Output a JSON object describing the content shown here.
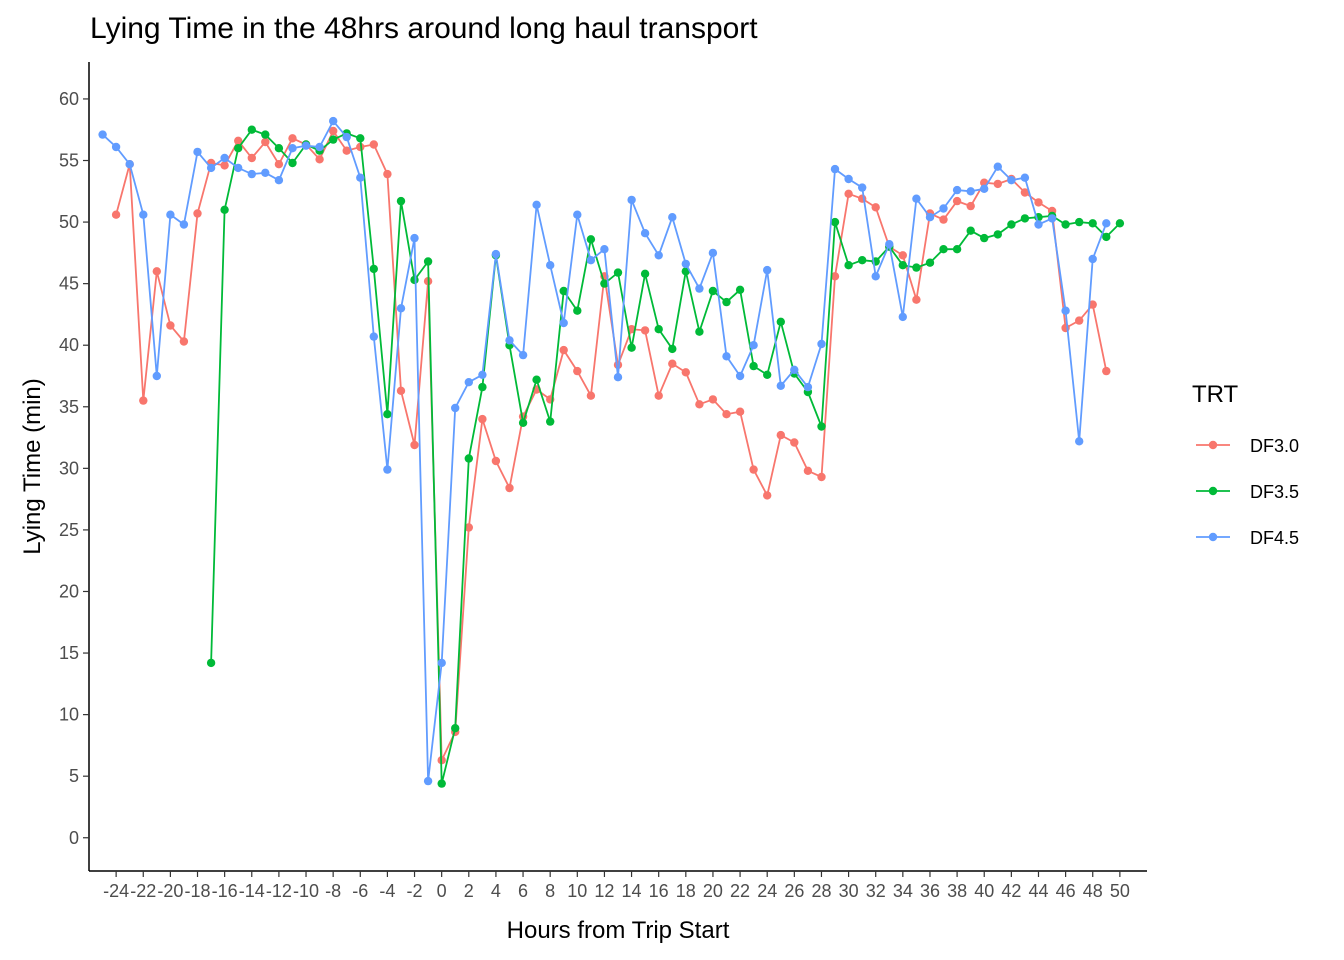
{
  "chart_data": {
    "type": "line",
    "title": "Lying Time in the 48hrs around long haul transport",
    "xlabel": "Hours from Trip Start",
    "ylabel": "Lying Time (min)",
    "xlim": [
      -26,
      52
    ],
    "ylim": [
      -2.7,
      63
    ],
    "x_ticks": [
      -24,
      -22,
      -20,
      -18,
      -16,
      -14,
      -12,
      -10,
      -8,
      -6,
      -4,
      -2,
      0,
      2,
      4,
      6,
      8,
      10,
      12,
      14,
      16,
      18,
      20,
      22,
      24,
      26,
      28,
      30,
      32,
      34,
      36,
      38,
      40,
      42,
      44,
      46,
      48,
      50
    ],
    "y_ticks": [
      0,
      5,
      10,
      15,
      20,
      25,
      30,
      35,
      40,
      45,
      50,
      55,
      60
    ],
    "grid": false,
    "legend": {
      "title": "TRT",
      "position": "right"
    },
    "series": [
      {
        "name": "DF3.0",
        "color": "#F8766D",
        "points": [
          [
            -24,
            50.6
          ],
          [
            -23,
            54.7
          ],
          [
            -22,
            35.5
          ],
          [
            -21,
            46.0
          ],
          [
            -20,
            41.6
          ],
          [
            -19,
            40.3
          ],
          [
            -18,
            50.7
          ],
          [
            -17,
            54.8
          ],
          [
            -16,
            54.6
          ],
          [
            -15,
            56.6
          ],
          [
            -14,
            55.2
          ],
          [
            -13,
            56.5
          ],
          [
            -12,
            54.7
          ],
          [
            -11,
            56.8
          ],
          [
            -10,
            56.3
          ],
          [
            -9,
            55.1
          ],
          [
            -8,
            57.4
          ],
          [
            -7,
            55.8
          ],
          [
            -6,
            56.1
          ],
          [
            -5,
            56.3
          ],
          [
            -4,
            53.9
          ],
          [
            -3,
            36.3
          ],
          [
            -2,
            31.9
          ],
          [
            -1,
            45.2
          ],
          [
            0,
            6.3
          ],
          [
            1,
            8.6
          ],
          [
            2,
            25.2
          ],
          [
            3,
            34.0
          ],
          [
            4,
            30.6
          ],
          [
            5,
            28.4
          ],
          [
            6,
            34.2
          ],
          [
            7,
            36.4
          ],
          [
            8,
            35.6
          ],
          [
            9,
            39.6
          ],
          [
            10,
            37.9
          ],
          [
            11,
            35.9
          ],
          [
            12,
            45.6
          ],
          [
            13,
            38.4
          ],
          [
            14,
            41.3
          ],
          [
            15,
            41.2
          ],
          [
            16,
            35.9
          ],
          [
            17,
            38.5
          ],
          [
            18,
            37.8
          ],
          [
            19,
            35.2
          ],
          [
            20,
            35.6
          ],
          [
            21,
            34.4
          ],
          [
            22,
            34.6
          ],
          [
            23,
            29.9
          ],
          [
            24,
            27.8
          ],
          [
            25,
            32.7
          ],
          [
            26,
            32.1
          ],
          [
            27,
            29.8
          ],
          [
            28,
            29.3
          ],
          [
            29,
            45.6
          ],
          [
            30,
            52.3
          ],
          [
            31,
            51.9
          ],
          [
            32,
            51.2
          ],
          [
            33,
            48.0
          ],
          [
            34,
            47.3
          ],
          [
            35,
            43.7
          ],
          [
            36,
            50.7
          ],
          [
            37,
            50.2
          ],
          [
            38,
            51.7
          ],
          [
            39,
            51.3
          ],
          [
            40,
            53.2
          ],
          [
            41,
            53.1
          ],
          [
            42,
            53.5
          ],
          [
            43,
            52.4
          ],
          [
            44,
            51.6
          ],
          [
            45,
            50.9
          ],
          [
            46,
            41.4
          ],
          [
            47,
            42.0
          ],
          [
            48,
            43.3
          ],
          [
            49,
            37.9
          ]
        ]
      },
      {
        "name": "DF3.5",
        "color": "#00BA38",
        "points": [
          [
            -17,
            14.2
          ],
          [
            -16,
            51.0
          ],
          [
            -15,
            56.0
          ],
          [
            -14,
            57.5
          ],
          [
            -13,
            57.1
          ],
          [
            -12,
            56.0
          ],
          [
            -11,
            54.8
          ],
          [
            -10,
            56.3
          ],
          [
            -9,
            55.8
          ],
          [
            -8,
            56.7
          ],
          [
            -7,
            57.2
          ],
          [
            -6,
            56.8
          ],
          [
            -5,
            46.2
          ],
          [
            -4,
            34.4
          ],
          [
            -3,
            51.7
          ],
          [
            -2,
            45.3
          ],
          [
            -1,
            46.8
          ],
          [
            0,
            4.4
          ],
          [
            1,
            8.9
          ],
          [
            2,
            30.8
          ],
          [
            3,
            36.6
          ],
          [
            4,
            47.3
          ],
          [
            5,
            40.0
          ],
          [
            6,
            33.7
          ],
          [
            7,
            37.2
          ],
          [
            8,
            33.8
          ],
          [
            9,
            44.4
          ],
          [
            10,
            42.8
          ],
          [
            11,
            48.6
          ],
          [
            12,
            45.0
          ],
          [
            13,
            45.9
          ],
          [
            14,
            39.8
          ],
          [
            15,
            45.8
          ],
          [
            16,
            41.3
          ],
          [
            17,
            39.7
          ],
          [
            18,
            46.0
          ],
          [
            19,
            41.1
          ],
          [
            20,
            44.4
          ],
          [
            21,
            43.5
          ],
          [
            22,
            44.5
          ],
          [
            23,
            38.3
          ],
          [
            24,
            37.6
          ],
          [
            25,
            41.9
          ],
          [
            26,
            37.7
          ],
          [
            27,
            36.2
          ],
          [
            28,
            33.4
          ],
          [
            29,
            50.0
          ],
          [
            30,
            46.5
          ],
          [
            31,
            46.9
          ],
          [
            32,
            46.8
          ],
          [
            33,
            48.0
          ],
          [
            34,
            46.5
          ],
          [
            35,
            46.3
          ],
          [
            36,
            46.7
          ],
          [
            37,
            47.8
          ],
          [
            38,
            47.8
          ],
          [
            39,
            49.3
          ],
          [
            40,
            48.7
          ],
          [
            41,
            49.0
          ],
          [
            42,
            49.8
          ],
          [
            43,
            50.3
          ],
          [
            44,
            50.4
          ],
          [
            45,
            50.5
          ],
          [
            46,
            49.8
          ],
          [
            47,
            50.0
          ],
          [
            48,
            49.9
          ],
          [
            49,
            48.8
          ],
          [
            50,
            49.9
          ]
        ]
      },
      {
        "name": "DF4.5",
        "color": "#619CFF",
        "points": [
          [
            -25,
            57.1
          ],
          [
            -24,
            56.1
          ],
          [
            -23,
            54.7
          ],
          [
            -22,
            50.6
          ],
          [
            -21,
            37.5
          ],
          [
            -20,
            50.6
          ],
          [
            -19,
            49.8
          ],
          [
            -18,
            55.7
          ],
          [
            -17,
            54.4
          ],
          [
            -16,
            55.2
          ],
          [
            -15,
            54.4
          ],
          [
            -14,
            53.9
          ],
          [
            -13,
            54.0
          ],
          [
            -12,
            53.4
          ],
          [
            -11,
            56.0
          ],
          [
            -10,
            56.2
          ],
          [
            -9,
            56.1
          ],
          [
            -8,
            58.2
          ],
          [
            -7,
            56.9
          ],
          [
            -6,
            53.6
          ],
          [
            -5,
            40.7
          ],
          [
            -4,
            29.9
          ],
          [
            -3,
            43.0
          ],
          [
            -2,
            48.7
          ],
          [
            -1,
            4.6
          ],
          [
            0,
            14.2
          ],
          [
            1,
            34.9
          ],
          [
            2,
            37.0
          ],
          [
            3,
            37.6
          ],
          [
            4,
            47.4
          ],
          [
            5,
            40.4
          ],
          [
            6,
            39.2
          ],
          [
            7,
            51.4
          ],
          [
            8,
            46.5
          ],
          [
            9,
            41.8
          ],
          [
            10,
            50.6
          ],
          [
            11,
            46.9
          ],
          [
            12,
            47.8
          ],
          [
            13,
            37.4
          ],
          [
            14,
            51.8
          ],
          [
            15,
            49.1
          ],
          [
            16,
            47.3
          ],
          [
            17,
            50.4
          ],
          [
            18,
            46.6
          ],
          [
            19,
            44.6
          ],
          [
            20,
            47.5
          ],
          [
            21,
            39.1
          ],
          [
            22,
            37.5
          ],
          [
            23,
            40.0
          ],
          [
            24,
            46.1
          ],
          [
            25,
            36.7
          ],
          [
            26,
            38.0
          ],
          [
            27,
            36.6
          ],
          [
            28,
            40.1
          ],
          [
            29,
            54.3
          ],
          [
            30,
            53.5
          ],
          [
            31,
            52.8
          ],
          [
            32,
            45.6
          ],
          [
            33,
            48.2
          ],
          [
            34,
            42.3
          ],
          [
            35,
            51.9
          ],
          [
            36,
            50.4
          ],
          [
            37,
            51.1
          ],
          [
            38,
            52.6
          ],
          [
            39,
            52.5
          ],
          [
            40,
            52.7
          ],
          [
            41,
            54.5
          ],
          [
            42,
            53.4
          ],
          [
            43,
            53.6
          ],
          [
            44,
            49.8
          ],
          [
            45,
            50.3
          ],
          [
            46,
            42.8
          ],
          [
            47,
            32.2
          ],
          [
            48,
            47.0
          ],
          [
            49,
            49.9
          ]
        ]
      }
    ]
  }
}
